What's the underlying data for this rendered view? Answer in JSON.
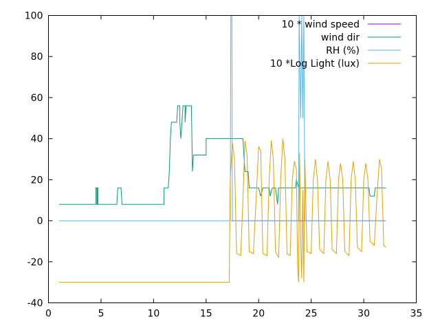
{
  "chart_data": {
    "type": "line",
    "xlim": [
      0,
      35
    ],
    "ylim": [
      -40,
      100
    ],
    "x_ticks": [
      "0",
      "5",
      "10",
      "15",
      "20",
      "25",
      "30",
      "35"
    ],
    "y_ticks": [
      "-40",
      "-20",
      "0",
      "20",
      "40",
      "60",
      "80",
      "100"
    ],
    "grid": false,
    "legend_position": "top-right",
    "series": [
      {
        "name": "10 * wind speed",
        "color": "#9400d3",
        "points": [
          [
            17.4,
            0
          ],
          [
            32.1,
            0
          ]
        ]
      },
      {
        "name": "wind dir",
        "color": "#009e73",
        "points": [
          [
            1.0,
            8
          ],
          [
            4.5,
            8
          ],
          [
            4.5,
            16
          ],
          [
            4.6,
            16
          ],
          [
            4.6,
            8
          ],
          [
            4.65,
            8
          ],
          [
            4.65,
            16
          ],
          [
            4.7,
            16
          ],
          [
            4.7,
            8
          ],
          [
            6.5,
            8
          ],
          [
            6.6,
            16
          ],
          [
            6.9,
            16
          ],
          [
            7.0,
            8
          ],
          [
            11.0,
            8
          ],
          [
            11.0,
            16
          ],
          [
            11.4,
            16
          ],
          [
            11.5,
            24
          ],
          [
            11.6,
            40
          ],
          [
            11.7,
            48
          ],
          [
            12.2,
            48
          ],
          [
            12.3,
            56
          ],
          [
            12.5,
            56
          ],
          [
            12.5,
            48
          ],
          [
            12.6,
            40
          ],
          [
            12.7,
            48
          ],
          [
            12.8,
            56
          ],
          [
            13.0,
            56
          ],
          [
            13.0,
            48
          ],
          [
            13.1,
            56
          ],
          [
            13.6,
            56
          ],
          [
            13.7,
            24
          ],
          [
            13.8,
            32
          ],
          [
            15.0,
            32
          ],
          [
            15.0,
            40
          ],
          [
            18.5,
            40
          ],
          [
            18.6,
            32
          ],
          [
            18.7,
            24
          ],
          [
            19.0,
            24
          ],
          [
            19.1,
            16
          ],
          [
            20.0,
            16
          ],
          [
            20.2,
            12
          ],
          [
            20.4,
            16
          ],
          [
            21.0,
            16
          ],
          [
            21.1,
            12
          ],
          [
            21.3,
            16
          ],
          [
            21.6,
            16
          ],
          [
            21.8,
            8
          ],
          [
            21.9,
            16
          ],
          [
            23.5,
            16
          ],
          [
            23.6,
            20
          ],
          [
            23.8,
            16
          ],
          [
            30.5,
            16
          ],
          [
            30.6,
            12
          ],
          [
            31.0,
            12
          ],
          [
            31.1,
            16
          ],
          [
            32.1,
            16
          ]
        ]
      },
      {
        "name": "RH (%)",
        "color": "#56b4e9",
        "points": [
          [
            1.0,
            0
          ],
          [
            17.3,
            0
          ],
          [
            17.35,
            100
          ],
          [
            17.45,
            100
          ],
          [
            17.5,
            0
          ],
          [
            23.8,
            0
          ],
          [
            23.85,
            100
          ],
          [
            24.0,
            50
          ],
          [
            24.1,
            100
          ],
          [
            24.2,
            50
          ],
          [
            24.3,
            100
          ],
          [
            24.4,
            0
          ],
          [
            32.1,
            0
          ]
        ]
      },
      {
        "name": "10 *Log Light (lux)",
        "color": "#e69f00",
        "points": [
          [
            1.0,
            -30
          ],
          [
            17.2,
            -30
          ],
          [
            17.3,
            20
          ],
          [
            17.5,
            38
          ],
          [
            17.7,
            30
          ],
          [
            17.9,
            -16
          ],
          [
            18.3,
            -17
          ],
          [
            18.5,
            10
          ],
          [
            18.7,
            39
          ],
          [
            18.9,
            32
          ],
          [
            19.1,
            -15
          ],
          [
            19.5,
            -16
          ],
          [
            19.8,
            15
          ],
          [
            20.0,
            36
          ],
          [
            20.2,
            34
          ],
          [
            20.4,
            -16
          ],
          [
            20.8,
            -17
          ],
          [
            21.0,
            20
          ],
          [
            21.2,
            39
          ],
          [
            21.4,
            30
          ],
          [
            21.6,
            -15
          ],
          [
            21.9,
            -18
          ],
          [
            22.1,
            20
          ],
          [
            22.3,
            40
          ],
          [
            22.5,
            30
          ],
          [
            22.7,
            -16
          ],
          [
            23.0,
            -17
          ],
          [
            23.2,
            20
          ],
          [
            23.4,
            29
          ],
          [
            23.6,
            25
          ],
          [
            23.7,
            -22
          ],
          [
            23.8,
            -30
          ],
          [
            23.9,
            33
          ],
          [
            24.0,
            -10
          ],
          [
            24.1,
            -28
          ],
          [
            24.2,
            15
          ],
          [
            24.3,
            -30
          ],
          [
            24.4,
            30
          ],
          [
            24.6,
            -15
          ],
          [
            25.0,
            -16
          ],
          [
            25.2,
            20
          ],
          [
            25.4,
            30
          ],
          [
            25.6,
            20
          ],
          [
            25.8,
            -14
          ],
          [
            26.2,
            -16
          ],
          [
            26.4,
            20
          ],
          [
            26.6,
            29
          ],
          [
            26.8,
            20
          ],
          [
            27.0,
            -14
          ],
          [
            27.4,
            -16
          ],
          [
            27.6,
            20
          ],
          [
            27.8,
            28
          ],
          [
            28.0,
            20
          ],
          [
            28.2,
            -15
          ],
          [
            28.6,
            -17
          ],
          [
            28.8,
            20
          ],
          [
            29.0,
            29
          ],
          [
            29.2,
            20
          ],
          [
            29.4,
            -13
          ],
          [
            29.8,
            -15
          ],
          [
            30.0,
            20
          ],
          [
            30.2,
            28
          ],
          [
            30.4,
            20
          ],
          [
            30.6,
            -10
          ],
          [
            31.0,
            -12
          ],
          [
            31.3,
            15
          ],
          [
            31.5,
            30
          ],
          [
            31.7,
            25
          ],
          [
            31.9,
            -12
          ],
          [
            32.1,
            -13
          ]
        ]
      }
    ]
  }
}
